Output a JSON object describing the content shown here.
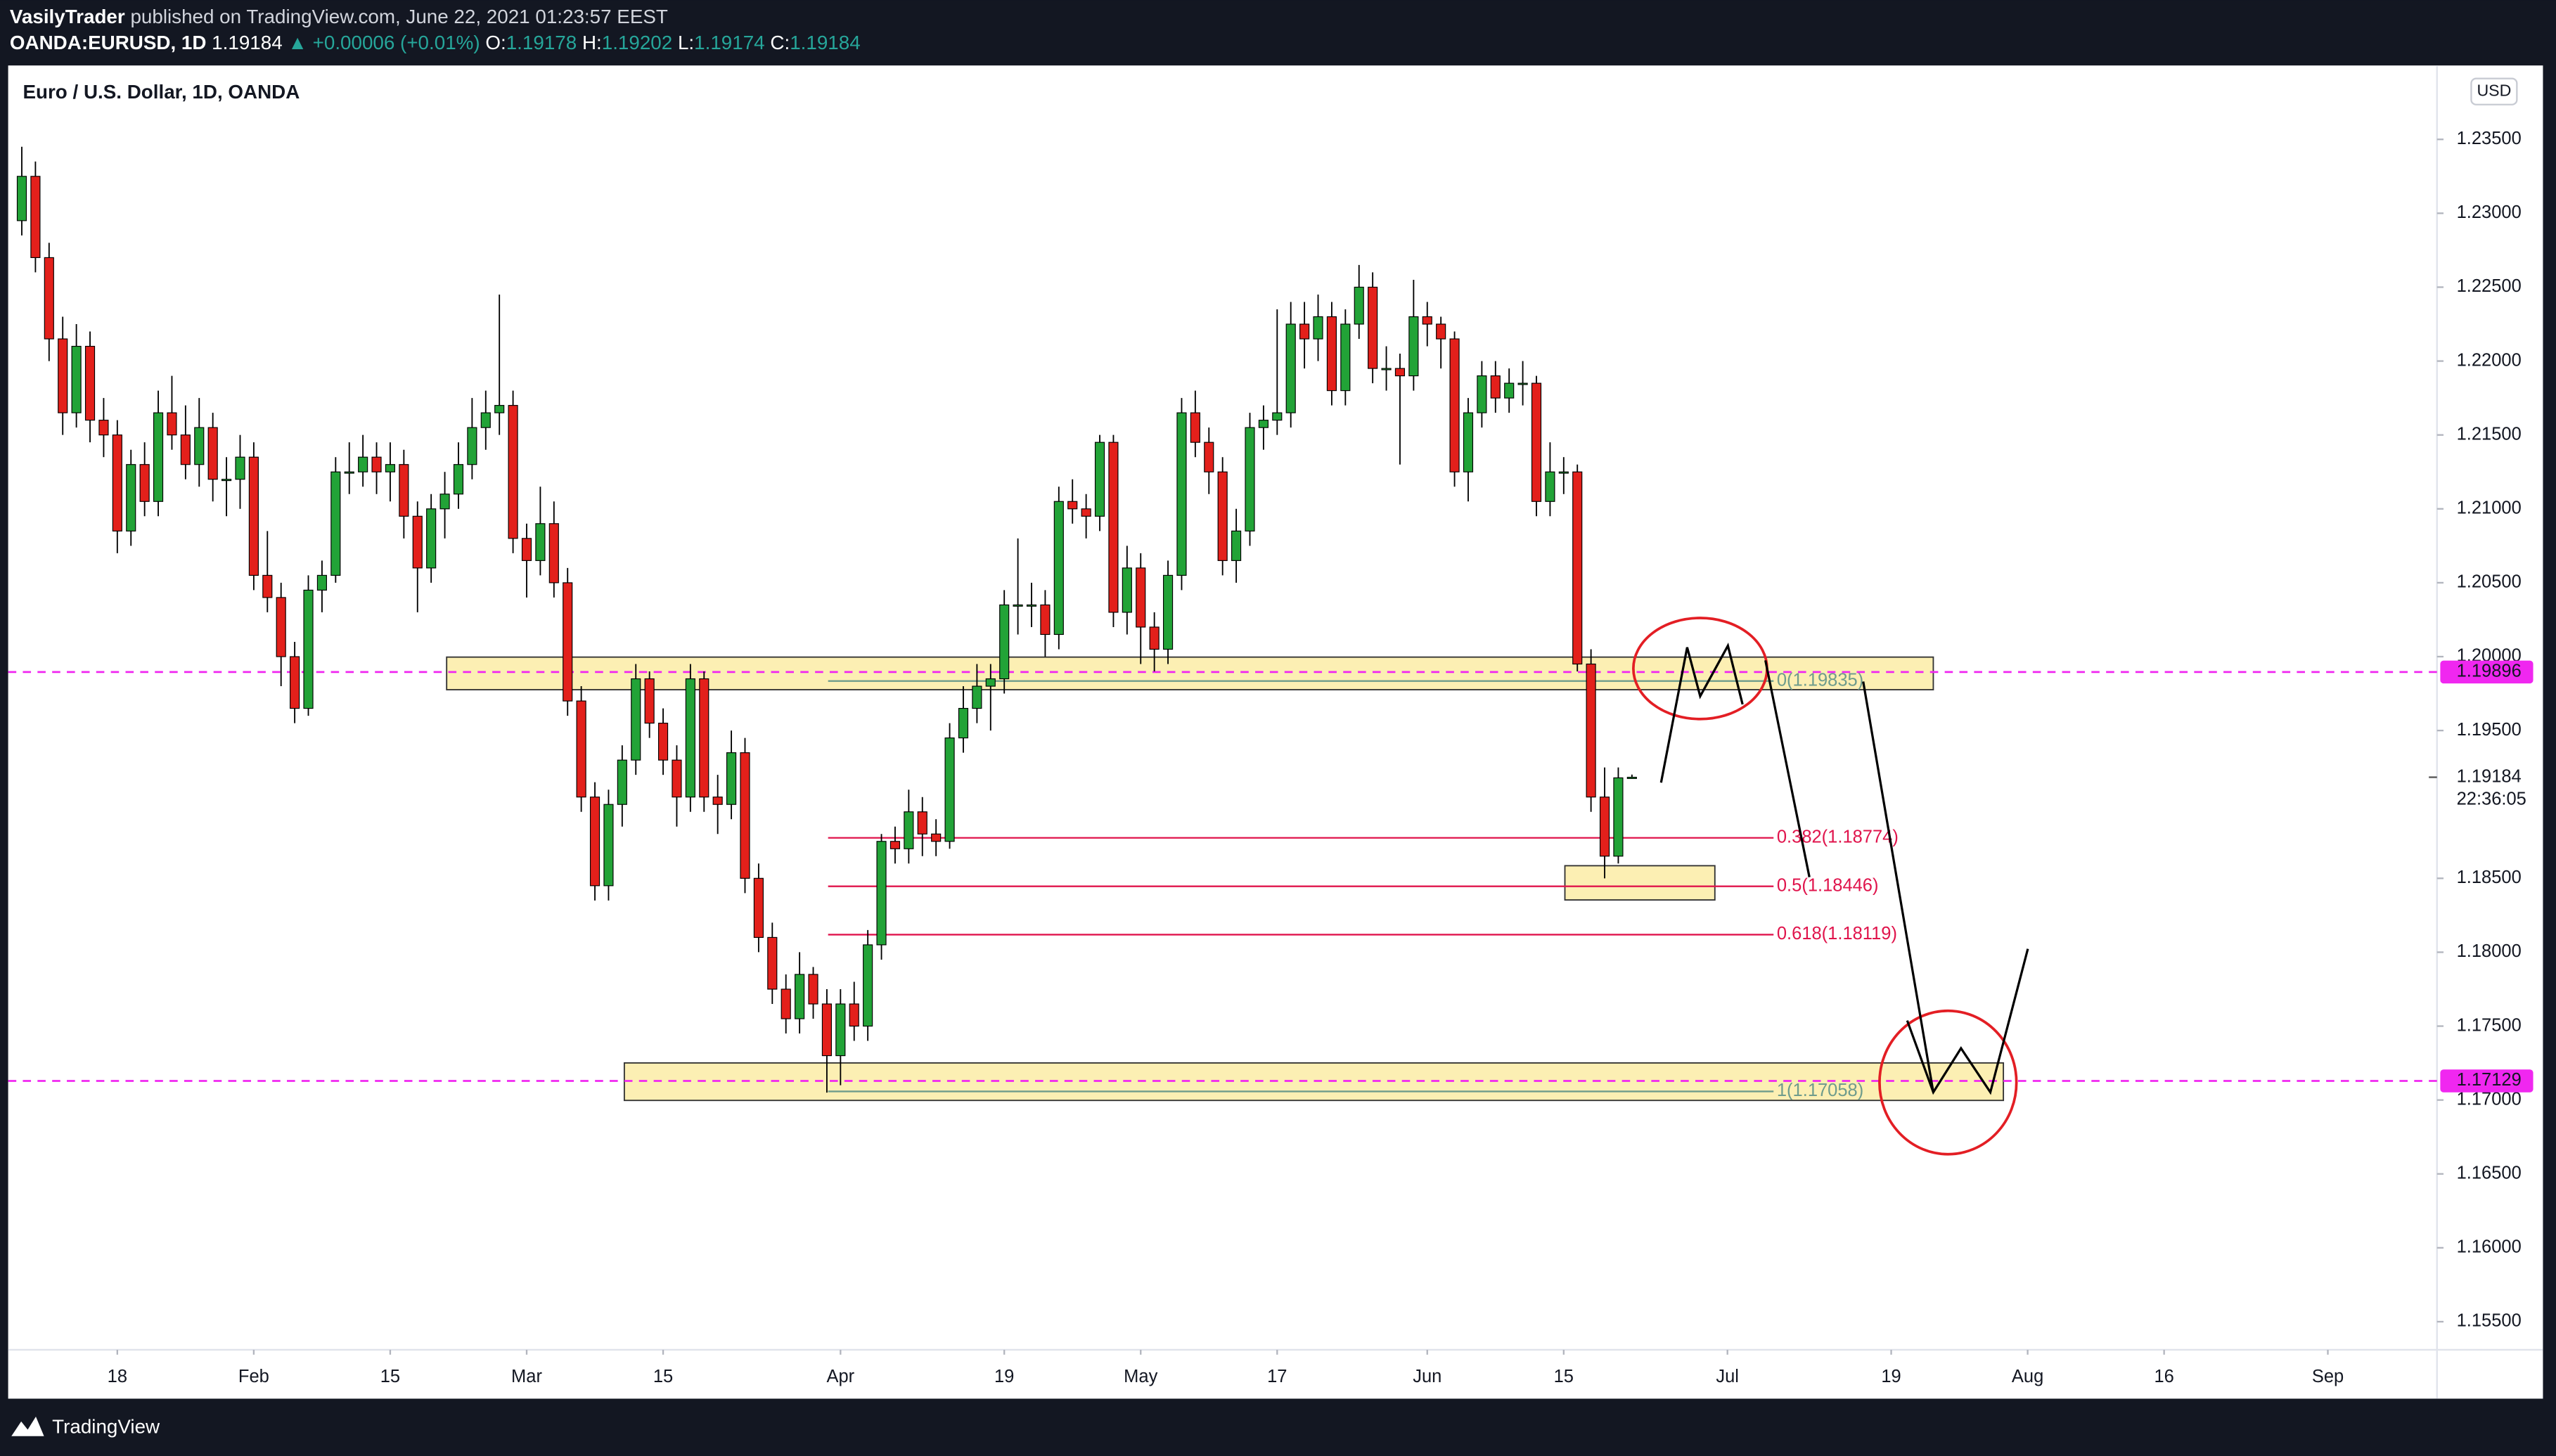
{
  "header": {
    "author": "VasilyTrader",
    "published": "published on TradingView.com, June 22, 2021 01:23:57 EEST"
  },
  "symbol_bar": {
    "symbol": "OANDA:EURUSD, 1D",
    "last": "1.19184",
    "change": "▲ +0.00006 (+0.01%)",
    "open_label": "O:",
    "open": "1.19178",
    "high_label": "H:",
    "high": "1.19202",
    "low_label": "L:",
    "low": "1.19174",
    "close_label": "C:",
    "close": "1.19184"
  },
  "chart_data": {
    "type": "candlestick",
    "title": "Euro / U.S. Dollar, 1D, OANDA",
    "currency": "USD",
    "up_color": "#22a337",
    "down_color": "#e3201b",
    "wick_color": "#000000",
    "grid": false,
    "candles": [
      [
        1.2295,
        1.2345,
        1.2285,
        1.2325
      ],
      [
        1.2325,
        1.2335,
        1.226,
        1.227
      ],
      [
        1.227,
        1.228,
        1.22,
        1.2215
      ],
      [
        1.2215,
        1.223,
        1.215,
        1.2165
      ],
      [
        1.2165,
        1.2225,
        1.2155,
        1.221
      ],
      [
        1.221,
        1.222,
        1.2145,
        1.216
      ],
      [
        1.216,
        1.2175,
        1.2135,
        1.215
      ],
      [
        1.215,
        1.216,
        1.207,
        1.2085
      ],
      [
        1.2085,
        1.214,
        1.2075,
        1.213
      ],
      [
        1.213,
        1.2145,
        1.2095,
        1.2105
      ],
      [
        1.2105,
        1.218,
        1.2095,
        1.2165
      ],
      [
        1.2165,
        1.219,
        1.214,
        1.215
      ],
      [
        1.215,
        1.217,
        1.212,
        1.213
      ],
      [
        1.213,
        1.2175,
        1.2115,
        1.2155
      ],
      [
        1.2155,
        1.2165,
        1.2105,
        1.212
      ],
      [
        1.212,
        1.2135,
        1.2095,
        1.212
      ],
      [
        1.212,
        1.215,
        1.21,
        1.2135
      ],
      [
        1.2135,
        1.2145,
        1.2045,
        1.2055
      ],
      [
        1.2055,
        1.2085,
        1.203,
        1.204
      ],
      [
        1.204,
        1.205,
        1.198,
        1.2
      ],
      [
        1.2,
        1.201,
        1.1955,
        1.1965
      ],
      [
        1.1965,
        1.2055,
        1.196,
        1.2045
      ],
      [
        1.2045,
        1.2065,
        1.203,
        1.2055
      ],
      [
        1.2055,
        1.2135,
        1.205,
        1.2125
      ],
      [
        1.2125,
        1.2145,
        1.211,
        1.2125
      ],
      [
        1.2125,
        1.215,
        1.2115,
        1.2135
      ],
      [
        1.2135,
        1.2145,
        1.211,
        1.2125
      ],
      [
        1.2125,
        1.2145,
        1.2105,
        1.213
      ],
      [
        1.213,
        1.214,
        1.208,
        1.2095
      ],
      [
        1.2095,
        1.2105,
        1.203,
        1.206
      ],
      [
        1.206,
        1.211,
        1.205,
        1.21
      ],
      [
        1.21,
        1.2125,
        1.208,
        1.211
      ],
      [
        1.211,
        1.2145,
        1.21,
        1.213
      ],
      [
        1.213,
        1.2175,
        1.212,
        1.2155
      ],
      [
        1.2155,
        1.218,
        1.214,
        1.2165
      ],
      [
        1.2165,
        1.2245,
        1.215,
        1.217
      ],
      [
        1.217,
        1.218,
        1.207,
        1.208
      ],
      [
        1.208,
        1.209,
        1.204,
        1.2065
      ],
      [
        1.2065,
        1.2115,
        1.2055,
        1.209
      ],
      [
        1.209,
        1.2105,
        1.204,
        1.205
      ],
      [
        1.205,
        1.206,
        1.196,
        1.197
      ],
      [
        1.197,
        1.198,
        1.1895,
        1.1905
      ],
      [
        1.1905,
        1.1915,
        1.1835,
        1.1845
      ],
      [
        1.1845,
        1.191,
        1.1835,
        1.19
      ],
      [
        1.19,
        1.194,
        1.1885,
        1.193
      ],
      [
        1.193,
        1.1995,
        1.192,
        1.1985
      ],
      [
        1.1985,
        1.199,
        1.1945,
        1.1955
      ],
      [
        1.1955,
        1.1965,
        1.192,
        1.193
      ],
      [
        1.193,
        1.194,
        1.1885,
        1.1905
      ],
      [
        1.1905,
        1.1995,
        1.1895,
        1.1985
      ],
      [
        1.1985,
        1.199,
        1.1895,
        1.1905
      ],
      [
        1.1905,
        1.192,
        1.188,
        1.19
      ],
      [
        1.19,
        1.195,
        1.189,
        1.1935
      ],
      [
        1.1935,
        1.1945,
        1.184,
        1.185
      ],
      [
        1.185,
        1.186,
        1.18,
        1.181
      ],
      [
        1.181,
        1.182,
        1.1765,
        1.1775
      ],
      [
        1.1775,
        1.1785,
        1.1745,
        1.1755
      ],
      [
        1.1755,
        1.18,
        1.1745,
        1.1785
      ],
      [
        1.1785,
        1.179,
        1.1755,
        1.1765
      ],
      [
        1.1765,
        1.1775,
        1.1705,
        1.173
      ],
      [
        1.173,
        1.1775,
        1.171,
        1.1765
      ],
      [
        1.1765,
        1.178,
        1.174,
        1.175
      ],
      [
        1.175,
        1.1815,
        1.174,
        1.1805
      ],
      [
        1.1805,
        1.188,
        1.1795,
        1.1875
      ],
      [
        1.1875,
        1.1885,
        1.186,
        1.187
      ],
      [
        1.187,
        1.191,
        1.186,
        1.1895
      ],
      [
        1.1895,
        1.1905,
        1.1865,
        1.188
      ],
      [
        1.188,
        1.189,
        1.1865,
        1.1875
      ],
      [
        1.1875,
        1.1955,
        1.187,
        1.1945
      ],
      [
        1.1945,
        1.198,
        1.1935,
        1.1965
      ],
      [
        1.1965,
        1.1995,
        1.1955,
        1.198
      ],
      [
        1.198,
        1.1995,
        1.195,
        1.1985
      ],
      [
        1.1985,
        1.2045,
        1.1975,
        1.2035
      ],
      [
        1.2035,
        1.208,
        1.2015,
        1.2035
      ],
      [
        1.2035,
        1.205,
        1.202,
        1.2035
      ],
      [
        1.2035,
        1.2045,
        1.2,
        1.2015
      ],
      [
        1.2015,
        1.2115,
        1.2005,
        1.2105
      ],
      [
        1.2105,
        1.212,
        1.209,
        1.21
      ],
      [
        1.21,
        1.211,
        1.208,
        1.2095
      ],
      [
        1.2095,
        1.215,
        1.2085,
        1.2145
      ],
      [
        1.2145,
        1.215,
        1.202,
        1.203
      ],
      [
        1.203,
        1.2075,
        1.2015,
        1.206
      ],
      [
        1.206,
        1.207,
        1.1995,
        1.202
      ],
      [
        1.202,
        1.203,
        1.199,
        1.2005
      ],
      [
        1.2005,
        1.2065,
        1.1995,
        1.2055
      ],
      [
        1.2055,
        1.2175,
        1.2045,
        1.2165
      ],
      [
        1.2165,
        1.218,
        1.2135,
        1.2145
      ],
      [
        1.2145,
        1.2155,
        1.211,
        1.2125
      ],
      [
        1.2125,
        1.2135,
        1.2055,
        1.2065
      ],
      [
        1.2065,
        1.21,
        1.205,
        1.2085
      ],
      [
        1.2085,
        1.2165,
        1.2075,
        1.2155
      ],
      [
        1.2155,
        1.217,
        1.214,
        1.216
      ],
      [
        1.216,
        1.2235,
        1.215,
        1.2165
      ],
      [
        1.2165,
        1.224,
        1.2155,
        1.2225
      ],
      [
        1.2225,
        1.224,
        1.2195,
        1.2215
      ],
      [
        1.2215,
        1.2245,
        1.22,
        1.223
      ],
      [
        1.223,
        1.224,
        1.217,
        1.218
      ],
      [
        1.218,
        1.2235,
        1.217,
        1.2225
      ],
      [
        1.2225,
        1.2265,
        1.2215,
        1.225
      ],
      [
        1.225,
        1.226,
        1.2185,
        1.2195
      ],
      [
        1.2195,
        1.221,
        1.218,
        1.2195
      ],
      [
        1.2195,
        1.2205,
        1.213,
        1.219
      ],
      [
        1.219,
        1.2255,
        1.218,
        1.223
      ],
      [
        1.223,
        1.224,
        1.221,
        1.2225
      ],
      [
        1.2225,
        1.223,
        1.2195,
        1.2215
      ],
      [
        1.2215,
        1.222,
        1.2115,
        1.2125
      ],
      [
        1.2125,
        1.2175,
        1.2105,
        1.2165
      ],
      [
        1.2165,
        1.22,
        1.2155,
        1.219
      ],
      [
        1.219,
        1.22,
        1.2165,
        1.2175
      ],
      [
        1.2175,
        1.2195,
        1.2165,
        1.2185
      ],
      [
        1.2185,
        1.22,
        1.217,
        1.2185
      ],
      [
        1.2185,
        1.219,
        1.2095,
        1.2105
      ],
      [
        1.2105,
        1.2145,
        1.2095,
        1.2125
      ],
      [
        1.2125,
        1.2135,
        1.211,
        1.2125
      ],
      [
        1.2125,
        1.213,
        1.199,
        1.1995
      ],
      [
        1.1995,
        1.2005,
        1.1895,
        1.1905
      ],
      [
        1.1905,
        1.1925,
        1.185,
        1.1865
      ],
      [
        1.1865,
        1.1925,
        1.186,
        1.1918
      ],
      [
        1.19178,
        1.19202,
        1.19174,
        1.19184
      ]
    ],
    "xlim": [
      -1,
      177
    ],
    "xticks": [
      {
        "value": 7,
        "label": "18"
      },
      {
        "value": 17,
        "label": "Feb"
      },
      {
        "value": 27,
        "label": "15"
      },
      {
        "value": 37,
        "label": "Mar"
      },
      {
        "value": 47,
        "label": "15"
      },
      {
        "value": 60,
        "label": "Apr"
      },
      {
        "value": 72,
        "label": "19"
      },
      {
        "value": 82,
        "label": "May"
      },
      {
        "value": 92,
        "label": "17"
      },
      {
        "value": 103,
        "label": "Jun"
      },
      {
        "value": 113,
        "label": "15"
      },
      {
        "value": 125,
        "label": "Jul"
      },
      {
        "value": 137,
        "label": "19"
      },
      {
        "value": 147,
        "label": "Aug"
      },
      {
        "value": 157,
        "label": "16"
      },
      {
        "value": 169,
        "label": "Sep"
      }
    ],
    "ylim": [
      1.1531,
      1.24
    ],
    "yticks": [
      {
        "value": 1.235,
        "label": "1.23500"
      },
      {
        "value": 1.23,
        "label": "1.23000"
      },
      {
        "value": 1.225,
        "label": "1.22500"
      },
      {
        "value": 1.22,
        "label": "1.22000"
      },
      {
        "value": 1.215,
        "label": "1.21500"
      },
      {
        "value": 1.21,
        "label": "1.21000"
      },
      {
        "value": 1.205,
        "label": "1.20500"
      },
      {
        "value": 1.2,
        "label": "1.20000"
      },
      {
        "value": 1.195,
        "label": "1.19500"
      },
      {
        "value": 1.185,
        "label": "1.18500"
      },
      {
        "value": 1.18,
        "label": "1.18000"
      },
      {
        "value": 1.175,
        "label": "1.17500"
      },
      {
        "value": 1.17,
        "label": "1.17000"
      },
      {
        "value": 1.165,
        "label": "1.16500"
      },
      {
        "value": 1.16,
        "label": "1.16000"
      },
      {
        "value": 1.155,
        "label": "1.15500"
      }
    ],
    "price_lines": [
      1.19896,
      1.17129
    ],
    "price_line_color": "#f027f0",
    "last_price": 1.19184,
    "countdown": "22:36:05",
    "fib_levels": [
      {
        "value": 1.19835,
        "label": "0(1.19835)",
        "color": "#6f9c8c"
      },
      {
        "value": 1.18774,
        "label": "0.382(1.18774)",
        "color": "#e0144c"
      },
      {
        "value": 1.18446,
        "label": "0.5(1.18446)",
        "color": "#e0144c"
      },
      {
        "value": 1.18119,
        "label": "0.618(1.18119)",
        "color": "#e0144c"
      },
      {
        "value": 1.17058,
        "label": "1(1.17058)",
        "color": "#6f9c8c"
      }
    ]
  },
  "footer": {
    "brand": "TradingView"
  }
}
